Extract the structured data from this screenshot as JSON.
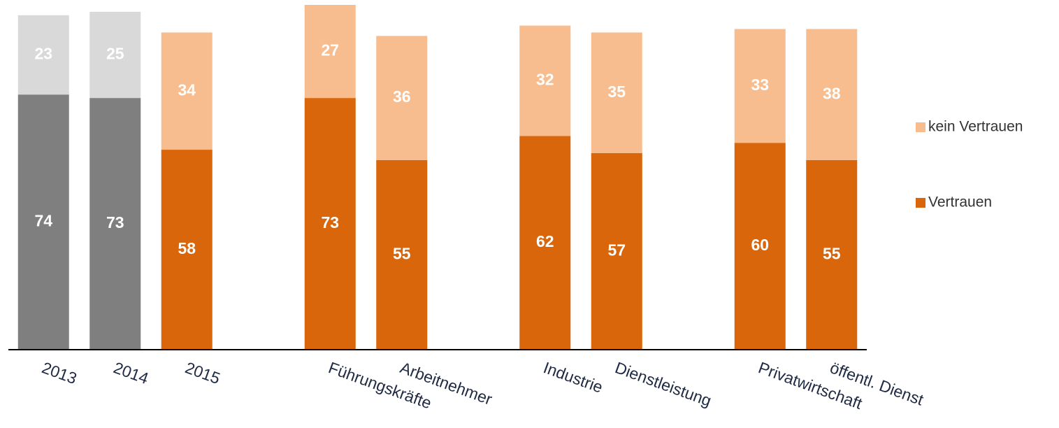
{
  "chart_data": {
    "type": "stacked_bar",
    "categories": [
      "2013",
      "2014",
      "2015",
      null,
      "Führungskräfte",
      "Arbeitnehmer",
      null,
      "Industrie",
      "Dienstleistung",
      null,
      "Privatwirtschaft",
      "öffentl. Dienst"
    ],
    "series": [
      {
        "name": "Vertrauen",
        "color": "#d9660b",
        "colors": [
          "#7f7f7f",
          "#7f7f7f",
          "#d9660b",
          null,
          "#d9660b",
          "#d9660b",
          null,
          "#d9660b",
          "#d9660b",
          null,
          "#d9660b",
          "#d9660b"
        ],
        "values": [
          74,
          73,
          58,
          null,
          73,
          55,
          null,
          62,
          57,
          null,
          60,
          55
        ]
      },
      {
        "name": "kein Vertrauen",
        "color": "#f8bd8e",
        "colors": [
          "#d9d9d9",
          "#d9d9d9",
          "#f8bd8e",
          null,
          "#f8bd8e",
          "#f8bd8e",
          null,
          "#f8bd8e",
          "#f8bd8e",
          null,
          "#f8bd8e",
          "#f8bd8e"
        ],
        "values": [
          23,
          25,
          34,
          null,
          27,
          36,
          null,
          32,
          35,
          null,
          33,
          38
        ]
      }
    ],
    "ylim": [
      0,
      100
    ]
  }
}
